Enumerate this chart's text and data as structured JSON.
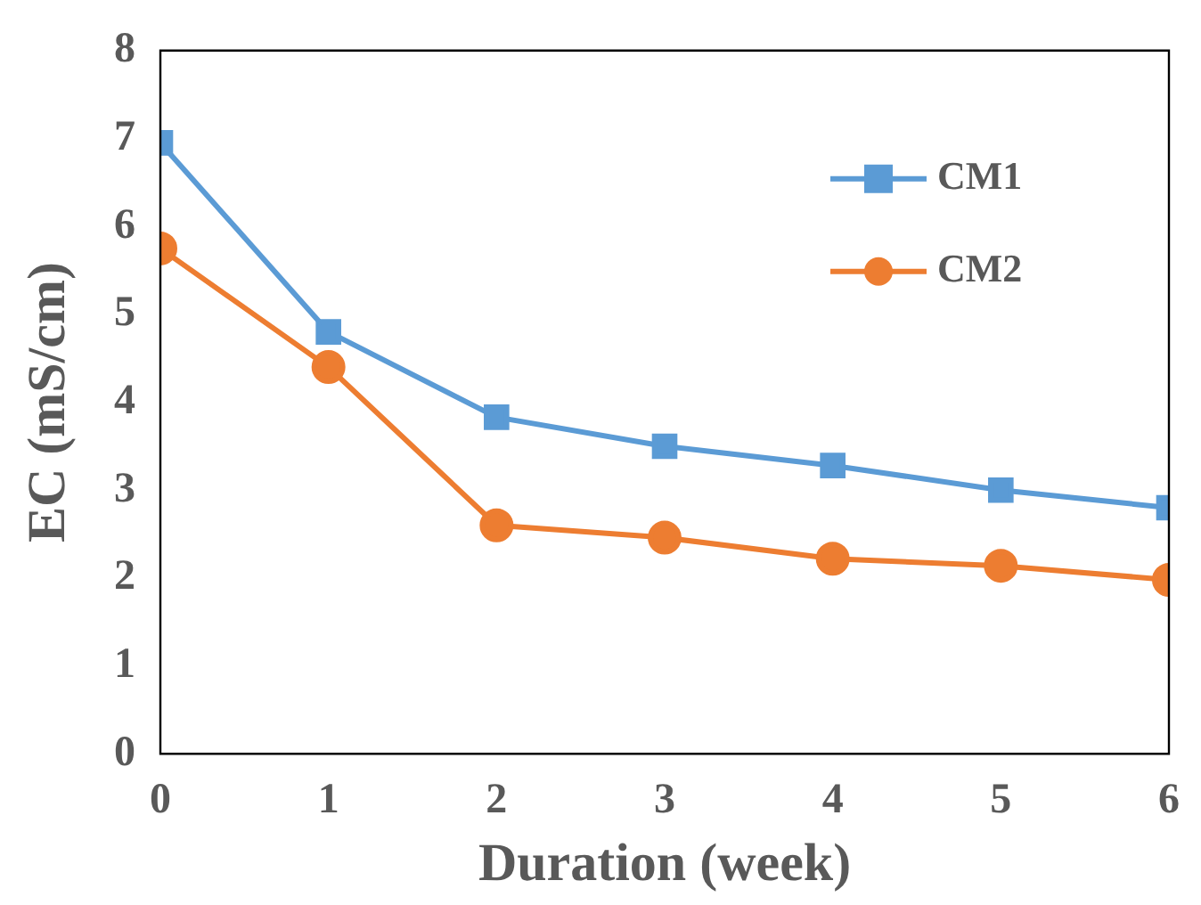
{
  "chart_data": {
    "type": "line",
    "xlabel": "Duration (week)",
    "ylabel": "EC (mS/cm)",
    "x": [
      0,
      1,
      2,
      3,
      4,
      5,
      6
    ],
    "xlim": [
      0,
      6
    ],
    "xticks": [
      0,
      1,
      2,
      3,
      4,
      5,
      6
    ],
    "ylim": [
      0,
      8
    ],
    "yticks": [
      0,
      1,
      2,
      3,
      4,
      5,
      6,
      7,
      8
    ],
    "series": [
      {
        "name": "CM1",
        "color": "#5b9bd5",
        "marker": "square",
        "values": [
          6.95,
          4.8,
          3.83,
          3.5,
          3.28,
          3.0,
          2.8
        ]
      },
      {
        "name": "CM2",
        "color": "#ed7d31",
        "marker": "circle",
        "values": [
          5.75,
          4.4,
          2.6,
          2.46,
          2.22,
          2.14,
          1.98
        ]
      }
    ],
    "grid": false,
    "legend": "top right",
    "line_style": "solid"
  }
}
